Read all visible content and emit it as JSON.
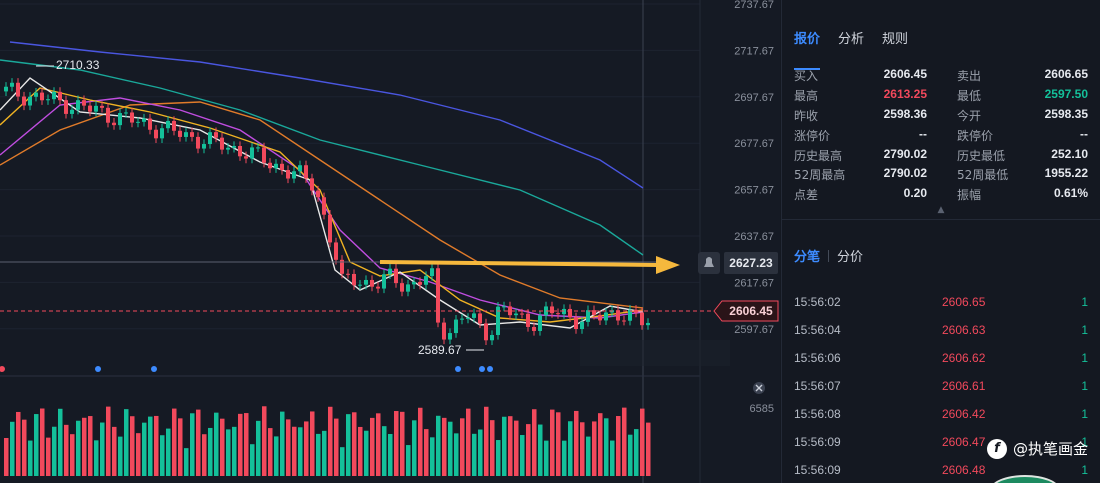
{
  "chart": {
    "price_axis": [
      "2737.67",
      "2717.67",
      "2697.67",
      "2677.67",
      "2657.67",
      "2637.67",
      "2617.67",
      "2597.67"
    ],
    "current_price": "2606.45",
    "alert_price": "2627.23",
    "high_marker": "2710.33",
    "low_marker": "2589.67",
    "volume_axis_label": "6585",
    "colors": {
      "up": "#14c09a",
      "down": "#f2495c",
      "ma_white": "#e8e8e8",
      "ma_yellow": "#f0b323",
      "ma_magenta": "#c04de0",
      "ma_orange": "#e07b2a",
      "ma_teal": "#1aa89a",
      "ma_blue": "#4a56e0",
      "arrow": "#f5b83d"
    }
  },
  "panel": {
    "tabs": [
      "报价",
      "分析",
      "规则"
    ],
    "quote": [
      {
        "l1": "买入",
        "v1": "2606.45",
        "c1": "",
        "l2": "卖出",
        "v2": "2606.65",
        "c2": ""
      },
      {
        "l1": "最高",
        "v1": "2613.25",
        "c1": "red",
        "l2": "最低",
        "v2": "2597.50",
        "c2": "green"
      },
      {
        "l1": "昨收",
        "v1": "2598.36",
        "c1": "",
        "l2": "今开",
        "v2": "2598.35",
        "c2": ""
      },
      {
        "l1": "涨停价",
        "v1": "--",
        "c1": "",
        "l2": "跌停价",
        "v2": "--",
        "c2": ""
      },
      {
        "l1": "历史最高",
        "v1": "2790.02",
        "c1": "",
        "l2": "历史最低",
        "v2": "252.10",
        "c2": ""
      },
      {
        "l1": "52周最高",
        "v1": "2790.02",
        "c1": "",
        "l2": "52周最低",
        "v2": "1955.22",
        "c2": ""
      },
      {
        "l1": "点差",
        "v1": "0.20",
        "c1": "",
        "l2": "振幅",
        "v2": "0.61%",
        "c2": ""
      }
    ],
    "sub_tabs": [
      "分笔",
      "分价"
    ],
    "ticks": [
      {
        "time": "15:56:02",
        "price": "2606.65",
        "vol": "1"
      },
      {
        "time": "15:56:04",
        "price": "2606.63",
        "vol": "1"
      },
      {
        "time": "15:56:06",
        "price": "2606.62",
        "vol": "1"
      },
      {
        "time": "15:56:07",
        "price": "2606.61",
        "vol": "1"
      },
      {
        "time": "15:56:08",
        "price": "2606.42",
        "vol": "1"
      },
      {
        "time": "15:56:09",
        "price": "2606.47",
        "vol": "1"
      },
      {
        "time": "15:56:09",
        "price": "2606.48",
        "vol": "1"
      }
    ],
    "watermark": "@执笔画金"
  }
}
